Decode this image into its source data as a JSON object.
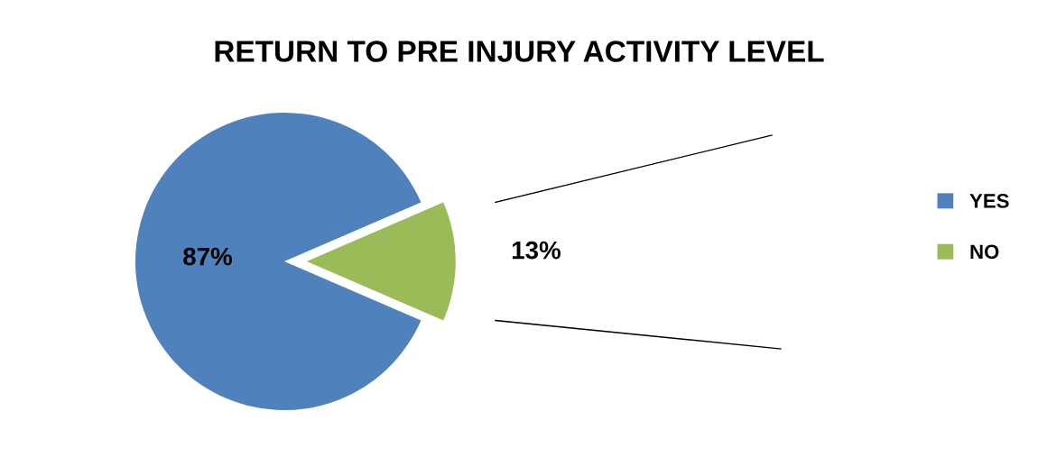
{
  "chart_data": {
    "type": "pie",
    "title": "RETURN TO PRE INJURY ACTIVITY LEVEL",
    "categories": [
      "YES",
      "NO"
    ],
    "values": [
      87,
      13
    ],
    "colors": [
      "#4f81bd",
      "#9bbb59"
    ],
    "value_labels": [
      "87%",
      "13%"
    ],
    "legend": "right"
  }
}
